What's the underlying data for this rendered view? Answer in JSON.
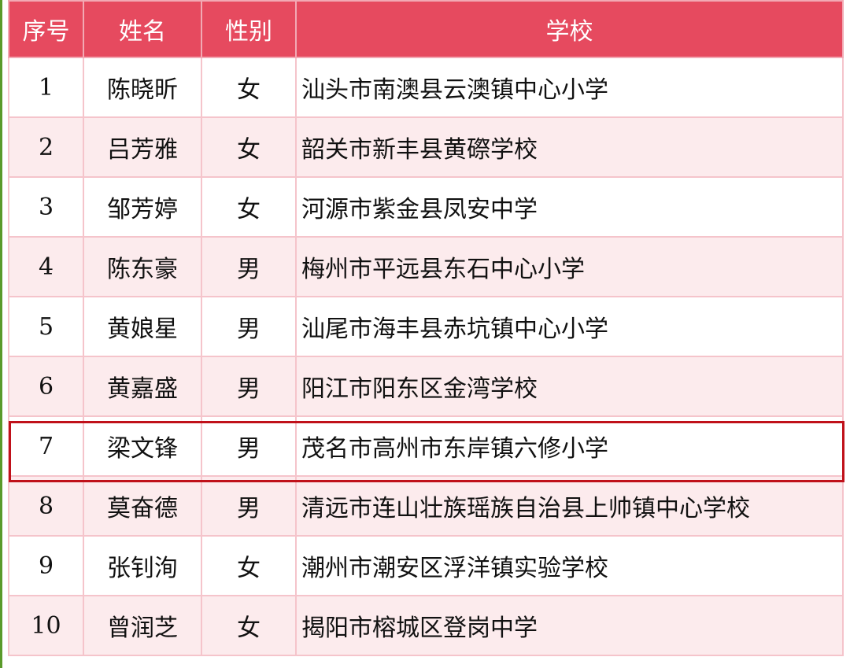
{
  "colors": {
    "header_bg": "#e64a5f",
    "even_row_bg": "#fcebed",
    "highlight_border": "#c0111a"
  },
  "headers": [
    "序号",
    "姓名",
    "性别",
    "学校"
  ],
  "rows": [
    [
      "1",
      "陈晓昕",
      "女",
      "汕头市南澳县云澳镇中心小学"
    ],
    [
      "2",
      "吕芳雅",
      "女",
      "韶关市新丰县黄磜学校"
    ],
    [
      "3",
      "邹芳婷",
      "女",
      "河源市紫金县凤安中学"
    ],
    [
      "4",
      "陈东豪",
      "男",
      "梅州市平远县东石中心小学"
    ],
    [
      "5",
      "黄娘星",
      "男",
      "汕尾市海丰县赤坑镇中心小学"
    ],
    [
      "6",
      "黄嘉盛",
      "男",
      "阳江市阳东区金湾学校"
    ],
    [
      "7",
      "梁文锋",
      "男",
      "茂名市高州市东岸镇六修小学"
    ],
    [
      "8",
      "莫奋德",
      "男",
      "清远市连山壮族瑶族自治县上帅镇中心学校"
    ],
    [
      "9",
      "张钊洵",
      "女",
      "潮州市潮安区浮洋镇实验学校"
    ],
    [
      "10",
      "曾润芝",
      "女",
      "揭阳市榕城区登岗中学"
    ]
  ],
  "highlighted_row": "7"
}
